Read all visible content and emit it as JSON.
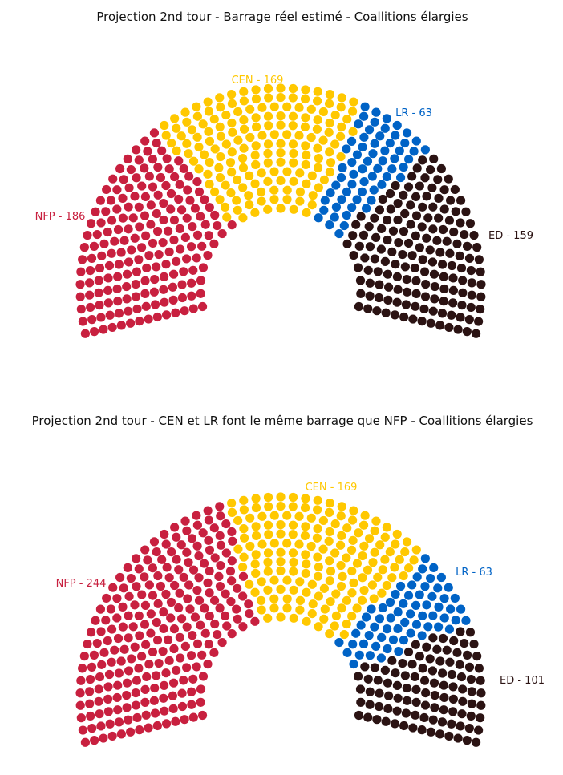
{
  "chart_data": [
    {
      "type": "parliament",
      "title": "Projection 2nd tour - Barrage réel estimé - Coallitions élargies",
      "parties": [
        {
          "name": "NFP",
          "seats": 186,
          "label": "NFP - 186",
          "color": "#C8203F"
        },
        {
          "name": "CEN",
          "seats": 169,
          "label": "CEN - 169",
          "color": "#FFC800"
        },
        {
          "name": "LR",
          "seats": 63,
          "label": "LR - 63",
          "color": "#0063C6"
        },
        {
          "name": "ED",
          "seats": 159,
          "label": "ED - 159",
          "color": "#2B1313"
        }
      ]
    },
    {
      "type": "parliament",
      "title": "Projection 2nd tour - CEN et LR font le même barrage que NFP - Coallitions élargies",
      "parties": [
        {
          "name": "NFP",
          "seats": 244,
          "label": "NFP - 244",
          "color": "#C8203F"
        },
        {
          "name": "CEN",
          "seats": 169,
          "label": "CEN - 169",
          "color": "#FFC800"
        },
        {
          "name": "LR",
          "seats": 63,
          "label": "LR - 63",
          "color": "#0063C6"
        },
        {
          "name": "ED",
          "seats": 101,
          "label": "ED - 101",
          "color": "#2B1313"
        }
      ]
    }
  ]
}
